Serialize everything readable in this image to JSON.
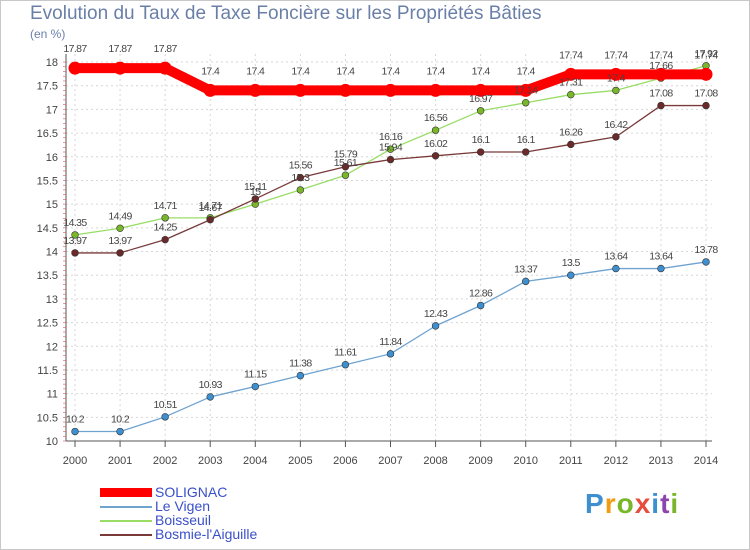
{
  "title": "Evolution du Taux de Taxe Foncière sur les Propriétés Bâties",
  "unit_label": "(en %)",
  "brand": {
    "text": "Proxiti",
    "colors": [
      "#3d8fcf",
      "#f39c12",
      "#7ab62a",
      "#e74c3c",
      "#3d8fcf",
      "#8e44ad",
      "#7ab62a"
    ]
  },
  "chart_data": {
    "type": "line",
    "title": "Evolution du Taux de Taxe Foncière sur les Propriétés Bâties",
    "xlabel": "",
    "ylabel": "(en %)",
    "ylim": [
      10,
      18
    ],
    "yticks": [
      "10",
      "10.5",
      "11",
      "11.5",
      "12",
      "12.5",
      "13",
      "13.5",
      "14",
      "14.5",
      "15",
      "15.5",
      "16",
      "16.5",
      "17",
      "17.5",
      "18"
    ],
    "categories": [
      "2000",
      "2001",
      "2002",
      "2003",
      "2004",
      "2005",
      "2006",
      "2007",
      "2008",
      "2009",
      "2010",
      "2011",
      "2012",
      "2013",
      "2014"
    ],
    "series": [
      {
        "name": "SOLIGNAC",
        "color": "#ff0000",
        "values": [
          17.87,
          17.87,
          17.87,
          17.4,
          17.4,
          17.4,
          17.4,
          17.4,
          17.4,
          17.4,
          17.4,
          17.74,
          17.74,
          17.74,
          17.74
        ],
        "labels": [
          "17.87",
          "17.87",
          "17.87",
          "17.4",
          "17.4",
          "17.4",
          "17.4",
          "17.4",
          "17.4",
          "17.4",
          "17.4",
          "17.74",
          "17.74",
          "17.74",
          "17.74"
        ]
      },
      {
        "name": "Le Vigen",
        "color": "#6fa3d0",
        "values": [
          10.2,
          10.2,
          10.51,
          10.93,
          11.15,
          11.38,
          11.61,
          11.84,
          12.43,
          12.86,
          13.37,
          13.5,
          13.64,
          13.64,
          13.78
        ],
        "labels": [
          "10.2",
          "10.2",
          "10.51",
          "10.93",
          "11.15",
          "11.38",
          "11.61",
          "11.84",
          "12.43",
          "12.86",
          "13.37",
          "13.5",
          "13.64",
          "13.64",
          "13.78"
        ]
      },
      {
        "name": "Boisseuil",
        "color": "#99dd66",
        "values": [
          14.35,
          14.49,
          14.71,
          14.71,
          15.0,
          15.3,
          15.61,
          16.16,
          16.56,
          16.97,
          17.14,
          17.31,
          17.4,
          17.66,
          17.92
        ],
        "labels": [
          "14.35",
          "14.49",
          "14.71",
          "14.71",
          "15",
          "15.3",
          "15.61",
          "16.16",
          "16.56",
          "16.97",
          "17.14",
          "17.31",
          "17.4",
          "17.66",
          "17.92"
        ]
      },
      {
        "name": "Bosmie-l'Aiguille",
        "color": "#7a3a3a",
        "values": [
          13.97,
          13.97,
          14.25,
          14.67,
          15.11,
          15.56,
          15.79,
          15.94,
          16.02,
          16.1,
          16.1,
          16.26,
          16.42,
          17.08,
          17.08
        ],
        "labels": [
          "13.97",
          "13.97",
          "14.25",
          "14.67",
          "15.11",
          "15.56",
          "15.79",
          "15.94",
          "16.02",
          "16.1",
          "16.1",
          "16.26",
          "16.42",
          "17.08",
          "17.08"
        ]
      }
    ],
    "legend_position": "bottom-left"
  }
}
